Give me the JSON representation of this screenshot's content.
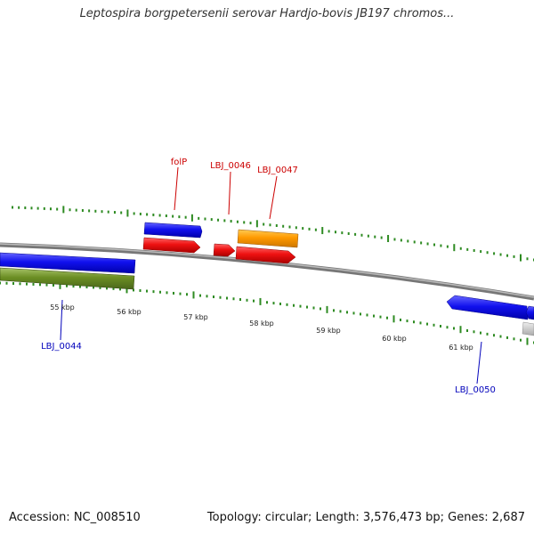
{
  "map": {
    "title": "Leptospira borgpetersenii serovar Hardjo-bovis JB197 chromos...",
    "accession": "Accession: NC_008510",
    "summary": "Topology: circular; Length: 3,576,473 bp; Genes: 2,687"
  },
  "kbp_labels": [
    "55 kbp",
    "56 kbp",
    "57 kbp",
    "58 kbp",
    "59 kbp",
    "60 kbp",
    "61 kbp"
  ],
  "genes": [
    {
      "label": "folP",
      "color": "#cc0000"
    },
    {
      "label": "LBJ_0046",
      "color": "#cc0000"
    },
    {
      "label": "LBJ_0047",
      "color": "#cc0000"
    },
    {
      "label": "LBJ_0044",
      "color": "#0000bb"
    },
    {
      "label": "LBJ_0050",
      "color": "#0000bb"
    }
  ],
  "feature_colors": {
    "forward_cds": "#1111ee",
    "reverse_cds": "#ee1111",
    "rna": "#ff9900",
    "other": "#6b8e23",
    "gray": "#bbbbbb",
    "ticks": "#2e8b22"
  }
}
